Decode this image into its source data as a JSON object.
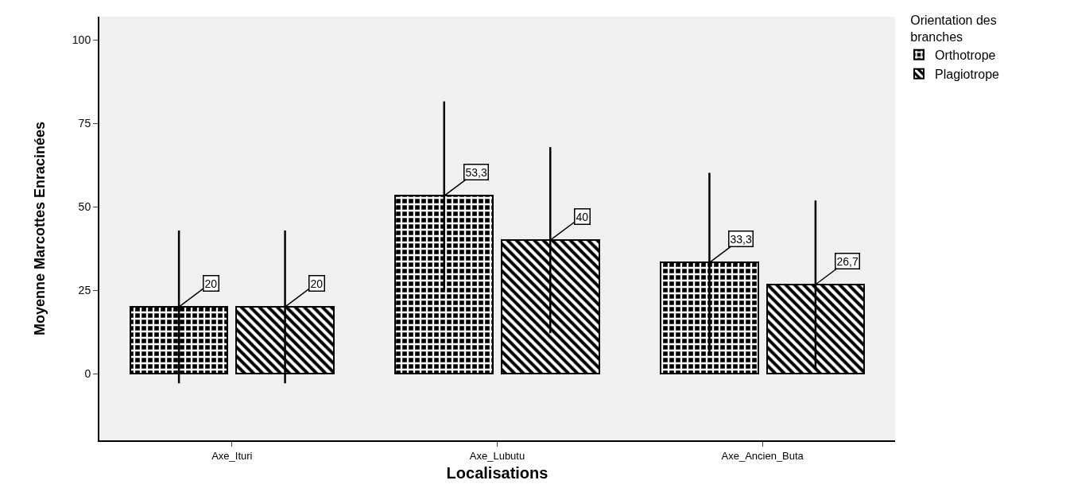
{
  "chart_data": {
    "type": "bar",
    "xlabel": "Localisations",
    "ylabel": "Moyenne Marcottes Enracinées",
    "legend_title": "Orientation des branches",
    "categories": [
      "Axe_Ituri",
      "Axe_Lubutu",
      "Axe_Ancien_Buta"
    ],
    "series": [
      {
        "name": "Orthotrope",
        "color": "#000000",
        "values": [
          20,
          53.3,
          33.3
        ],
        "errors": [
          22.9,
          28.3,
          26.9
        ],
        "value_labels": [
          "20",
          "53,3",
          "33,3"
        ]
      },
      {
        "name": "Plagiotrope",
        "color": "#000000",
        "values": [
          20,
          40,
          26.7
        ],
        "errors": [
          22.9,
          27.9,
          25.2
        ],
        "value_labels": [
          "20",
          "40",
          "26,7"
        ]
      }
    ],
    "ylim": [
      -20,
      107
    ],
    "yticks": [
      0,
      25,
      50,
      75,
      100
    ],
    "grid": false,
    "legend": "top right"
  }
}
